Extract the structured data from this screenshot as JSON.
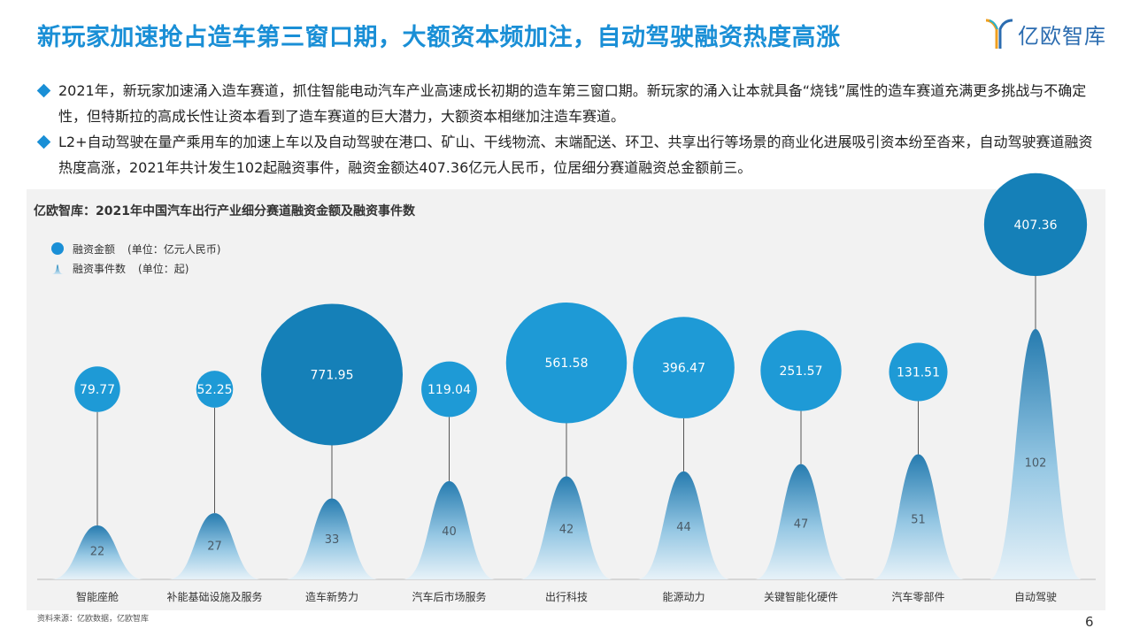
{
  "header": {
    "title": "新玩家加速抢占造车第三窗口期，大额资本频加注，自动驾驶融资热度高涨",
    "logo_text": "亿欧智库"
  },
  "bullets": [
    "2021年，新玩家加速涌入造车赛道，抓住智能电动汽车产业高速成长初期的造车第三窗口期。新玩家的涌入让本就具备“烧钱”属性的造车赛道充满更多挑战与不确定性，但特斯拉的高成长性让资本看到了造车赛道的巨大潜力，大额资本相继加注造车赛道。",
    "L2+自动驾驶在量产乘用车的加速上车以及自动驾驶在港口、矿山、干线物流、末端配送、环卫、共享出行等场景的商业化进展吸引资本纷至沓来，自动驾驶赛道融资热度高涨，2021年共计发生102起融资事件，融资金额达407.36亿元人民币，位居细分赛道融资总金额前三。"
  ],
  "chart_data": {
    "type": "bubble-mountain",
    "title": "亿欧智库：2021年中国汽车出行产业细分赛道融资金额及融资事件数",
    "legend": [
      {
        "name": "融资金额",
        "unit": "(单位：亿元人民币)"
      },
      {
        "name": "融资事件数",
        "unit": "(单位：起)"
      }
    ],
    "categories": [
      "智能座舱",
      "补能基础设施及服务",
      "造车新势力",
      "汽车后市场服务",
      "出行科技",
      "能源动力",
      "关键智能化硬件",
      "汽车零部件",
      "自动驾驶"
    ],
    "series": [
      {
        "name": "融资金额",
        "values": [
          79.77,
          52.25,
          771.95,
          119.04,
          561.58,
          396.47,
          251.57,
          131.51,
          407.36
        ],
        "labels": [
          "79.77",
          "52.25",
          "771.95",
          "119.04",
          "561.58",
          "396.47",
          "251.57",
          "131.51",
          "407.36"
        ]
      },
      {
        "name": "融资事件数",
        "values": [
          22,
          27,
          33,
          40,
          42,
          44,
          47,
          51,
          102
        ]
      }
    ],
    "colors": {
      "bubble_dark": "#1580b8",
      "bubble_light": "#1e9ad6",
      "mountain_top": "#0f6ea8",
      "mountain_bottom": "#e6f2f9"
    }
  },
  "footer": {
    "source": "资料来源：亿欧数据，亿欧智库",
    "page": "6"
  }
}
